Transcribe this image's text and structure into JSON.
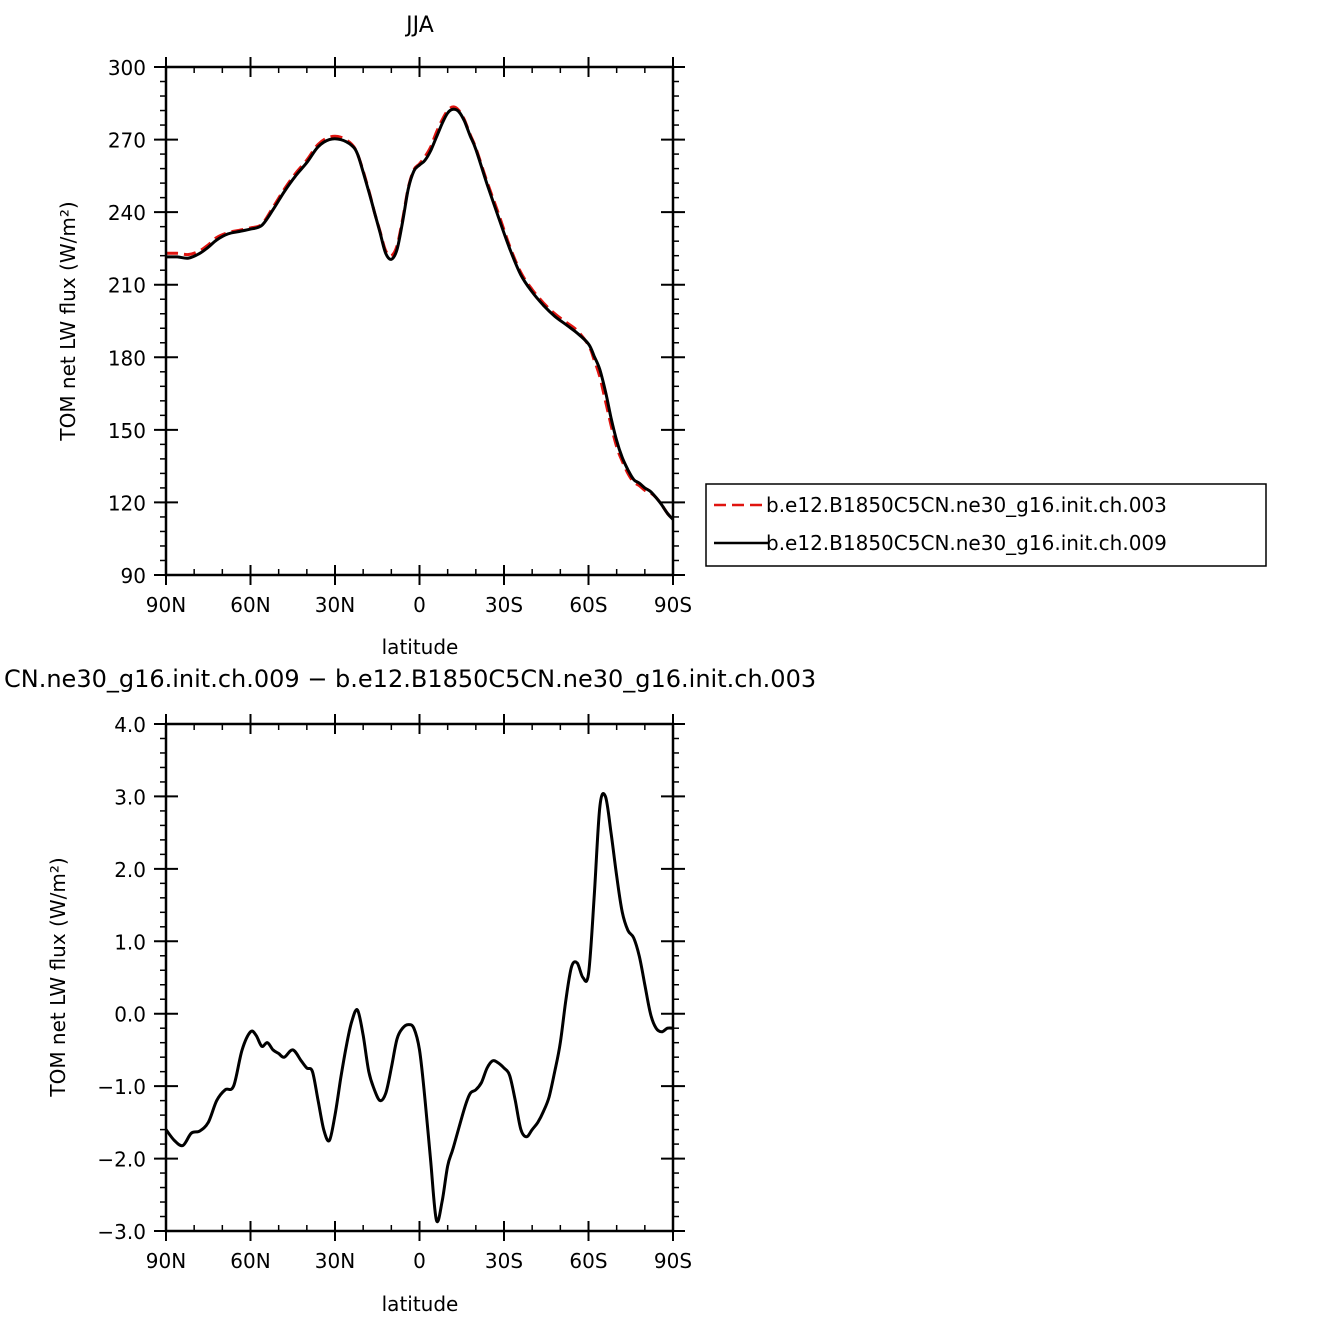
{
  "chart_data": [
    {
      "type": "line",
      "title": "JJA",
      "xlabel": "latitude",
      "ylabel": "TOM net LW flux (W/m²)",
      "xlim": [
        90,
        -90
      ],
      "ylim": [
        90,
        300
      ],
      "x_ticks": [
        90,
        60,
        30,
        0,
        -30,
        -60,
        -90
      ],
      "x_tick_labels": [
        "90N",
        "60N",
        "30N",
        "0",
        "30S",
        "60S",
        "90S"
      ],
      "y_ticks": [
        90,
        120,
        150,
        180,
        210,
        240,
        270,
        300
      ],
      "y_tick_labels": [
        "90",
        "120",
        "150",
        "180",
        "210",
        "240",
        "270",
        "300"
      ],
      "legend_position": "right",
      "series": [
        {
          "name": "b.e12.B1850C5CN.ne30_g16.init.ch.003",
          "color": "#e0140f",
          "dash": "dashed",
          "x": [
            90,
            86,
            82,
            78,
            75,
            72,
            68,
            64,
            60,
            56,
            52,
            48,
            44,
            40,
            36,
            32,
            28,
            24,
            22,
            20,
            18,
            16,
            14,
            12,
            10,
            8,
            6,
            4,
            2,
            0,
            -2,
            -4,
            -6,
            -8,
            -10,
            -12,
            -14,
            -16,
            -18,
            -20,
            -24,
            -28,
            -32,
            -36,
            -40,
            -44,
            -48,
            -52,
            -56,
            -60,
            -62,
            -64,
            -66,
            -68,
            -70,
            -72,
            -74,
            -76,
            -78,
            -80,
            -82,
            -84,
            -86,
            -88,
            -90
          ],
          "y": [
            223,
            223,
            222.5,
            224,
            226.5,
            229.5,
            231.5,
            232.5,
            233.5,
            235,
            242,
            249.5,
            256,
            261.5,
            268,
            271,
            271,
            268,
            264,
            257,
            249,
            240,
            232,
            224,
            222,
            226,
            237,
            250,
            257.5,
            260,
            263,
            267,
            273,
            278,
            282,
            283.5,
            282,
            278,
            272,
            266.5,
            252.5,
            239.5,
            226,
            215,
            208,
            202.5,
            198,
            194.5,
            191,
            185,
            179,
            172,
            162,
            152,
            143,
            137,
            132,
            128.5,
            127,
            125,
            124,
            122,
            119,
            115.5,
            113
          ]
        },
        {
          "name": "b.e12.B1850C5CN.ne30_g16.init.ch.009",
          "color": "#000000",
          "dash": "solid",
          "x": [
            90,
            86,
            82,
            78,
            75,
            72,
            68,
            64,
            60,
            56,
            52,
            48,
            44,
            40,
            36,
            32,
            28,
            24,
            22,
            20,
            18,
            16,
            14,
            12,
            10,
            8,
            6,
            4,
            2,
            0,
            -2,
            -4,
            -6,
            -8,
            -10,
            -12,
            -14,
            -16,
            -18,
            -20,
            -24,
            -28,
            -32,
            -36,
            -40,
            -44,
            -48,
            -52,
            -56,
            -60,
            -62,
            -64,
            -66,
            -68,
            -70,
            -72,
            -74,
            -76,
            -78,
            -80,
            -82,
            -84,
            -86,
            -88,
            -90
          ],
          "y": [
            221.5,
            221.5,
            221,
            223,
            225.5,
            228.5,
            231,
            232,
            233,
            234.5,
            241,
            248.5,
            255,
            260.5,
            267,
            270,
            270,
            267.5,
            264,
            256.5,
            248.5,
            240,
            231.5,
            223,
            220.5,
            224.5,
            236,
            249.5,
            257,
            259.5,
            261.5,
            265.5,
            271,
            276.5,
            281,
            282.5,
            281.5,
            277.5,
            271.5,
            266,
            251.5,
            238,
            225,
            214,
            207,
            201.5,
            197,
            193.5,
            190,
            185.5,
            180.5,
            175,
            166,
            155,
            145.5,
            138.5,
            133.5,
            129.5,
            128,
            126,
            124.5,
            122,
            119,
            115.5,
            113
          ]
        }
      ]
    },
    {
      "type": "line",
      "title": "CN.ne30_g16.init.ch.009 − b.e12.B1850C5CN.ne30_g16.init.ch.003",
      "xlabel": "latitude",
      "ylabel": "TOM net LW flux (W/m²)",
      "xlim": [
        90,
        -90
      ],
      "ylim": [
        -3.0,
        4.0
      ],
      "x_ticks": [
        90,
        60,
        30,
        0,
        -30,
        -60,
        -90
      ],
      "x_tick_labels": [
        "90N",
        "60N",
        "30N",
        "0",
        "30S",
        "60S",
        "90S"
      ],
      "y_ticks": [
        -3,
        -2,
        -1,
        0,
        1,
        2,
        3,
        4
      ],
      "y_tick_labels": [
        "−3.0",
        "−2.0",
        "−1.0",
        "0.0",
        "1.0",
        "2.0",
        "3.0",
        "4.0"
      ],
      "series": [
        {
          "color": "#000000",
          "dash": "solid",
          "x": [
            90,
            87,
            84,
            81,
            78,
            75,
            72,
            69,
            66,
            63,
            60,
            58,
            56,
            54,
            52,
            50,
            48,
            45,
            42,
            40,
            38,
            36,
            34,
            32,
            30,
            28,
            26,
            24,
            22,
            20,
            18,
            16,
            14,
            12,
            10,
            8,
            6,
            4,
            2,
            0,
            -2,
            -4,
            -6,
            -8,
            -10,
            -12,
            -16,
            -18,
            -20,
            -22,
            -24,
            -26,
            -28,
            -30,
            -32,
            -34,
            -36,
            -38,
            -40,
            -42,
            -44,
            -46,
            -48,
            -50,
            -52,
            -54,
            -56,
            -58,
            -60,
            -62,
            -64,
            -66,
            -68,
            -70,
            -72,
            -74,
            -76,
            -78,
            -80,
            -82,
            -84,
            -86,
            -88,
            -90
          ],
          "y": [
            -1.6,
            -1.75,
            -1.82,
            -1.65,
            -1.62,
            -1.5,
            -1.2,
            -1.05,
            -1.0,
            -0.5,
            -0.25,
            -0.3,
            -0.45,
            -0.4,
            -0.5,
            -0.55,
            -0.6,
            -0.5,
            -0.65,
            -0.75,
            -0.8,
            -1.2,
            -1.6,
            -1.75,
            -1.4,
            -0.9,
            -0.45,
            -0.1,
            0.05,
            -0.3,
            -0.8,
            -1.05,
            -1.2,
            -1.1,
            -0.75,
            -0.35,
            -0.2,
            -0.15,
            -0.2,
            -0.5,
            -1.2,
            -2.05,
            -2.85,
            -2.6,
            -2.1,
            -1.85,
            -1.3,
            -1.1,
            -1.05,
            -0.95,
            -0.75,
            -0.65,
            -0.68,
            -0.75,
            -0.85,
            -1.2,
            -1.6,
            -1.7,
            -1.6,
            -1.5,
            -1.35,
            -1.15,
            -0.8,
            -0.4,
            0.2,
            0.65,
            0.7,
            0.5,
            0.55,
            1.6,
            2.85,
            3.0,
            2.5,
            1.9,
            1.4,
            1.15,
            1.05,
            0.8,
            0.4,
            0.0,
            -0.2,
            -0.25,
            -0.2,
            -0.2
          ]
        }
      ]
    }
  ]
}
